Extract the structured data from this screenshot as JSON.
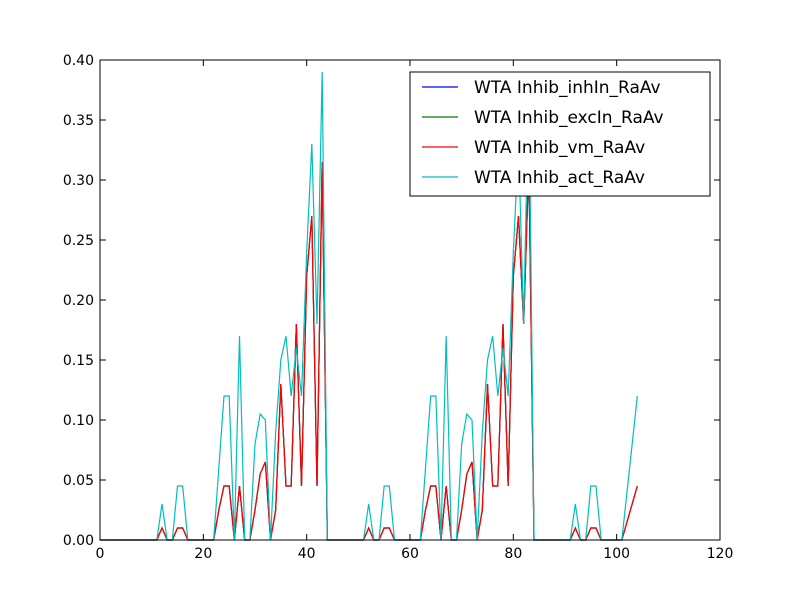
{
  "chart_data": {
    "type": "line",
    "title": "",
    "xlabel": "",
    "ylabel": "",
    "xlim": [
      0,
      120
    ],
    "ylim": [
      0,
      0.4
    ],
    "x_ticks": [
      0,
      20,
      40,
      60,
      80,
      100,
      120
    ],
    "x_tick_labels": [
      "0",
      "20",
      "40",
      "60",
      "80",
      "100",
      "120"
    ],
    "y_ticks": [
      0.0,
      0.05,
      0.1,
      0.15,
      0.2,
      0.25,
      0.3,
      0.35,
      0.4
    ],
    "y_tick_labels": [
      "0.00",
      "0.05",
      "0.10",
      "0.15",
      "0.20",
      "0.25",
      "0.30",
      "0.35",
      "0.40"
    ],
    "grid": false,
    "legend_position": "top-right",
    "x": [
      0,
      1,
      2,
      3,
      4,
      5,
      6,
      7,
      8,
      9,
      10,
      11,
      12,
      13,
      14,
      15,
      16,
      17,
      18,
      19,
      20,
      21,
      22,
      23,
      24,
      25,
      26,
      27,
      28,
      29,
      30,
      31,
      32,
      33,
      34,
      35,
      36,
      37,
      38,
      39,
      40,
      41,
      42,
      43,
      44,
      45,
      46,
      47,
      48,
      49,
      50,
      51,
      52,
      53,
      54,
      55,
      56,
      57,
      58,
      59,
      60,
      61,
      62,
      63,
      64,
      65,
      66,
      67,
      68,
      69,
      70,
      71,
      72,
      73,
      74,
      75,
      76,
      77,
      78,
      79,
      80,
      81,
      82,
      83,
      84,
      85,
      86,
      87,
      88,
      89,
      90,
      91,
      92,
      93,
      94,
      95,
      96,
      97,
      98,
      99,
      100,
      101,
      102,
      103,
      104
    ],
    "series": [
      {
        "name": "WTA Inhib_inhIn_RaAv",
        "color": "#0000ff",
        "values": [
          0,
          0,
          0,
          0,
          0,
          0,
          0,
          0,
          0,
          0,
          0,
          0,
          0.01,
          0,
          0,
          0.01,
          0.01,
          0,
          0,
          0,
          0,
          0,
          0,
          0.025,
          0.045,
          0.045,
          0,
          0.045,
          0,
          0,
          0.025,
          0.055,
          0.065,
          0,
          0.025,
          0.13,
          0.045,
          0.045,
          0.18,
          0.045,
          0.22,
          0.27,
          0.045,
          0.315,
          0,
          0,
          0,
          0,
          0,
          0,
          0,
          0,
          0.01,
          0,
          0,
          0.01,
          0.01,
          0,
          0,
          0,
          0,
          0,
          0,
          0.025,
          0.045,
          0.045,
          0,
          0.045,
          0,
          0,
          0.025,
          0.055,
          0.065,
          0,
          0.025,
          0.13,
          0.045,
          0.045,
          0.18,
          0.045,
          0.22,
          0.27,
          0.18,
          0.315,
          0,
          0,
          0,
          0,
          0,
          0,
          0,
          0,
          0.01,
          0,
          0,
          0.01,
          0.01,
          0,
          0,
          0,
          0,
          0,
          0.015,
          0.03,
          0.045
        ]
      },
      {
        "name": "WTA Inhib_excIn_RaAv",
        "color": "#008000",
        "values": [
          0,
          0,
          0,
          0,
          0,
          0,
          0,
          0,
          0,
          0,
          0,
          0,
          0.01,
          0,
          0,
          0.01,
          0.01,
          0,
          0,
          0,
          0,
          0,
          0,
          0.025,
          0.045,
          0.045,
          0,
          0.045,
          0,
          0,
          0.025,
          0.055,
          0.065,
          0,
          0.025,
          0.13,
          0.045,
          0.045,
          0.18,
          0.045,
          0.22,
          0.27,
          0.045,
          0.315,
          0,
          0,
          0,
          0,
          0,
          0,
          0,
          0,
          0.01,
          0,
          0,
          0.01,
          0.01,
          0,
          0,
          0,
          0,
          0,
          0,
          0.025,
          0.045,
          0.045,
          0,
          0.045,
          0,
          0,
          0.025,
          0.055,
          0.065,
          0,
          0.025,
          0.13,
          0.045,
          0.045,
          0.18,
          0.045,
          0.22,
          0.27,
          0.18,
          0.315,
          0,
          0,
          0,
          0,
          0,
          0,
          0,
          0,
          0.01,
          0,
          0,
          0.01,
          0.01,
          0,
          0,
          0,
          0,
          0,
          0.015,
          0.03,
          0.045
        ]
      },
      {
        "name": "WTA Inhib_vm_RaAv",
        "color": "#ff0000",
        "values": [
          0,
          0,
          0,
          0,
          0,
          0,
          0,
          0,
          0,
          0,
          0,
          0,
          0.01,
          0,
          0,
          0.01,
          0.01,
          0,
          0,
          0,
          0,
          0,
          0,
          0.025,
          0.045,
          0.045,
          0,
          0.045,
          0,
          0,
          0.025,
          0.055,
          0.065,
          0,
          0.025,
          0.13,
          0.045,
          0.045,
          0.18,
          0.045,
          0.22,
          0.27,
          0.045,
          0.315,
          0,
          0,
          0,
          0,
          0,
          0,
          0,
          0,
          0.01,
          0,
          0,
          0.01,
          0.01,
          0,
          0,
          0,
          0,
          0,
          0,
          0.025,
          0.045,
          0.045,
          0,
          0.045,
          0,
          0,
          0.025,
          0.055,
          0.065,
          0,
          0.025,
          0.13,
          0.045,
          0.045,
          0.18,
          0.045,
          0.22,
          0.27,
          0.18,
          0.315,
          0,
          0,
          0,
          0,
          0,
          0,
          0,
          0,
          0.01,
          0,
          0,
          0.01,
          0.01,
          0,
          0,
          0,
          0,
          0,
          0.015,
          0.03,
          0.045
        ]
      },
      {
        "name": "WTA Inhib_act_RaAv",
        "color": "#00bfbf",
        "values": [
          0,
          0,
          0,
          0,
          0,
          0,
          0,
          0,
          0,
          0,
          0,
          0,
          0.03,
          0,
          0,
          0.045,
          0.045,
          0,
          0,
          0,
          0,
          0,
          0,
          0.06,
          0.12,
          0.12,
          0,
          0.17,
          0,
          0,
          0.08,
          0.105,
          0.1,
          0,
          0.09,
          0.15,
          0.17,
          0.12,
          0.16,
          0.12,
          0.24,
          0.33,
          0.18,
          0.39,
          0,
          0,
          0,
          0,
          0,
          0,
          0,
          0,
          0.03,
          0,
          0,
          0.045,
          0.045,
          0,
          0,
          0,
          0,
          0,
          0,
          0.06,
          0.12,
          0.12,
          0,
          0.17,
          0,
          0,
          0.08,
          0.105,
          0.1,
          0,
          0.09,
          0.15,
          0.17,
          0.12,
          0.16,
          0.12,
          0.24,
          0.33,
          0.18,
          0.39,
          0,
          0,
          0,
          0,
          0,
          0,
          0,
          0,
          0.03,
          0,
          0,
          0.045,
          0.045,
          0,
          0,
          0,
          0,
          0,
          0.04,
          0.08,
          0.12
        ]
      }
    ]
  }
}
